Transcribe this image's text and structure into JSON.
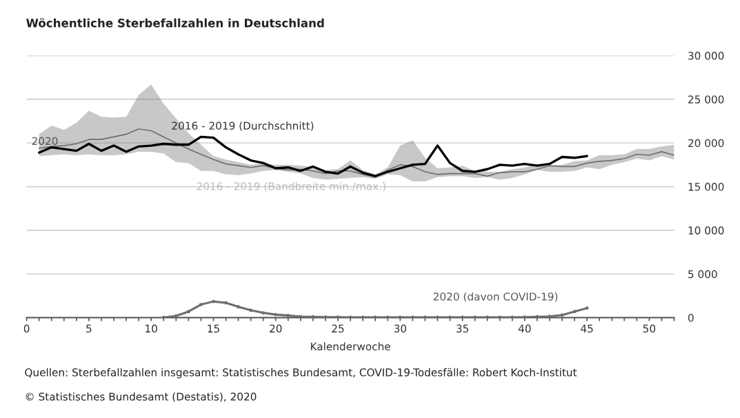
{
  "chart_data": {
    "type": "line",
    "title": "Wöchentliche Sterbefallzahlen in Deutschland",
    "xlabel": "Kalenderwoche",
    "xlim": [
      0,
      52
    ],
    "xticks": [
      0,
      {
        "value": 1,
        "label": null
      },
      {
        "value": 2,
        "label": null
      },
      {
        "value": 3,
        "label": null
      },
      {
        "value": 4,
        "label": null
      },
      5,
      {
        "value": 6,
        "label": null
      },
      {
        "value": 7,
        "label": null
      },
      {
        "value": 8,
        "label": null
      },
      {
        "value": 9,
        "label": null
      },
      10,
      {
        "value": 11,
        "label": null
      },
      {
        "value": 12,
        "label": null
      },
      {
        "value": 13,
        "label": null
      },
      {
        "value": 14,
        "label": null
      },
      15,
      {
        "value": 16,
        "label": null
      },
      {
        "value": 17,
        "label": null
      },
      {
        "value": 18,
        "label": null
      },
      {
        "value": 19,
        "label": null
      },
      20,
      {
        "value": 21,
        "label": null
      },
      {
        "value": 22,
        "label": null
      },
      {
        "value": 23,
        "label": null
      },
      {
        "value": 24,
        "label": null
      },
      25,
      {
        "value": 26,
        "label": null
      },
      {
        "value": 27,
        "label": null
      },
      {
        "value": 28,
        "label": null
      },
      {
        "value": 29,
        "label": null
      },
      30,
      {
        "value": 31,
        "label": null
      },
      {
        "value": 32,
        "label": null
      },
      {
        "value": 33,
        "label": null
      },
      {
        "value": 34,
        "label": null
      },
      35,
      {
        "value": 36,
        "label": null
      },
      {
        "value": 37,
        "label": null
      },
      {
        "value": 38,
        "label": null
      },
      {
        "value": 39,
        "label": null
      },
      40,
      {
        "value": 41,
        "label": null
      },
      {
        "value": 42,
        "label": null
      },
      {
        "value": 43,
        "label": null
      },
      {
        "value": 44,
        "label": null
      },
      45,
      {
        "value": 46,
        "label": null
      },
      {
        "value": 47,
        "label": null
      },
      {
        "value": 48,
        "label": null
      },
      {
        "value": 49,
        "label": null
      },
      50,
      {
        "value": 51,
        "label": null
      },
      {
        "value": 52,
        "label": null
      }
    ],
    "ylim": [
      0,
      30000
    ],
    "yticks": [
      {
        "value": 0,
        "label": "0"
      },
      {
        "value": 5000,
        "label": "5 000"
      },
      {
        "value": 10000,
        "label": "10 000"
      },
      {
        "value": 15000,
        "label": "15 000"
      },
      {
        "value": 20000,
        "label": "20 000"
      },
      {
        "value": 25000,
        "label": "25 000"
      },
      {
        "value": 30000,
        "label": "30 000"
      }
    ],
    "grid": "y",
    "legend": false,
    "series": [
      {
        "color": "#6e6e6e",
        "x": [
          1,
          2,
          3,
          4,
          5,
          6,
          7,
          8,
          9,
          10,
          11,
          12,
          13,
          14,
          15,
          16,
          17,
          18,
          19,
          20,
          21,
          22,
          23,
          24,
          25,
          26,
          27,
          28,
          29,
          30,
          31,
          32,
          33,
          34,
          35,
          36,
          37,
          38,
          39,
          40,
          41,
          42,
          43,
          44,
          45,
          46,
          47,
          48,
          49,
          50,
          51,
          52
        ],
        "values": [
          19400,
          19600,
          19700,
          19900,
          20400,
          20400,
          20700,
          21000,
          21600,
          21400,
          20700,
          20000,
          19300,
          18700,
          18100,
          17600,
          17400,
          17200,
          17400,
          17100,
          16900,
          17000,
          16800,
          16500,
          16800,
          16800,
          16400,
          16100,
          16900,
          17500,
          17300,
          16700,
          16400,
          16500,
          16500,
          16500,
          16200,
          16600,
          16700,
          16700,
          17000,
          17400,
          17300,
          17300,
          17700,
          17900,
          18000,
          18200,
          18700,
          18600,
          19000,
          18600
        ],
        "upper": [
          21000,
          22000,
          21500,
          22300,
          23700,
          23000,
          22900,
          23000,
          25500,
          26700,
          24500,
          22800,
          21100,
          19800,
          18500,
          18100,
          17800,
          17500,
          17700,
          17500,
          17500,
          17400,
          17300,
          16900,
          17000,
          18000,
          16900,
          16400,
          17200,
          19700,
          20300,
          18300,
          17100,
          17200,
          17400,
          16800,
          16700,
          16700,
          17000,
          17200,
          17600,
          17400,
          17500,
          17900,
          18000,
          18600,
          18600,
          18700,
          19300,
          19300,
          19600,
          19800
        ],
        "lower": [
          18500,
          18600,
          18700,
          18600,
          18700,
          18600,
          18600,
          18700,
          19000,
          19000,
          18800,
          17800,
          17700,
          16800,
          16800,
          16400,
          16300,
          16500,
          16800,
          16900,
          16700,
          16500,
          16000,
          15800,
          15900,
          16000,
          16100,
          15900,
          16400,
          16300,
          15600,
          15600,
          16100,
          16200,
          16200,
          16000,
          16100,
          15800,
          16000,
          16400,
          16900,
          16700,
          16700,
          16800,
          17200,
          17000,
          17500,
          17800,
          18200,
          18000,
          18500,
          18100
        ]
      },
      {
        "color": "#000000",
        "x": [
          1,
          2,
          3,
          4,
          5,
          6,
          7,
          8,
          9,
          10,
          11,
          12,
          13,
          14,
          15,
          16,
          17,
          18,
          19,
          20,
          21,
          22,
          23,
          24,
          25,
          26,
          27,
          28,
          29,
          30,
          31,
          32,
          33,
          34,
          35,
          36,
          37,
          38,
          39,
          40,
          41,
          42,
          43,
          44,
          45
        ],
        "values": [
          18900,
          19500,
          19300,
          19100,
          19900,
          19100,
          19700,
          19000,
          19600,
          19700,
          19900,
          19800,
          19800,
          20700,
          20600,
          19500,
          18700,
          18000,
          17700,
          17100,
          17200,
          16800,
          17300,
          16700,
          16500,
          17300,
          16600,
          16200,
          16700,
          17100,
          17500,
          17600,
          19700,
          17700,
          16800,
          16700,
          17000,
          17500,
          17400,
          17600,
          17400,
          17600,
          18400,
          18300,
          18500
        ]
      },
      {
        "color": "#6e6e6e",
        "marker": "circle",
        "x": [
          11,
          12,
          13,
          14,
          15,
          16,
          17,
          18,
          19,
          20,
          21,
          22,
          23,
          24,
          25,
          26,
          27,
          28,
          29,
          30,
          31,
          32,
          33,
          34,
          35,
          36,
          37,
          38,
          39,
          40,
          41,
          42,
          43,
          44,
          45
        ],
        "values": [
          30,
          200,
          700,
          1500,
          1850,
          1700,
          1250,
          850,
          550,
          350,
          250,
          120,
          100,
          70,
          60,
          50,
          50,
          50,
          50,
          50,
          50,
          50,
          50,
          50,
          50,
          50,
          50,
          50,
          50,
          60,
          100,
          150,
          300,
          700,
          1100
        ]
      }
    ],
    "annotations": [
      {
        "text": "2020",
        "x": 1,
        "y": 18900
      },
      {
        "text": "2016 - 2019 (Durchschnitt)",
        "x": 12,
        "y": 20000
      },
      {
        "text": "2016 - 2019 (Bandbreite min./max.)",
        "x": 14,
        "y": 16800
      },
      {
        "text": "2020 (davon COVID-19)",
        "x": 45,
        "y": 1100
      },
      "Quellen: Sterbefallzahlen insgesamt: Statistisches Bundesamt, COVID-19-Todesfälle: Robert Koch-Institut",
      "© Statistisches Bundesamt (Destatis), 2020"
    ]
  }
}
